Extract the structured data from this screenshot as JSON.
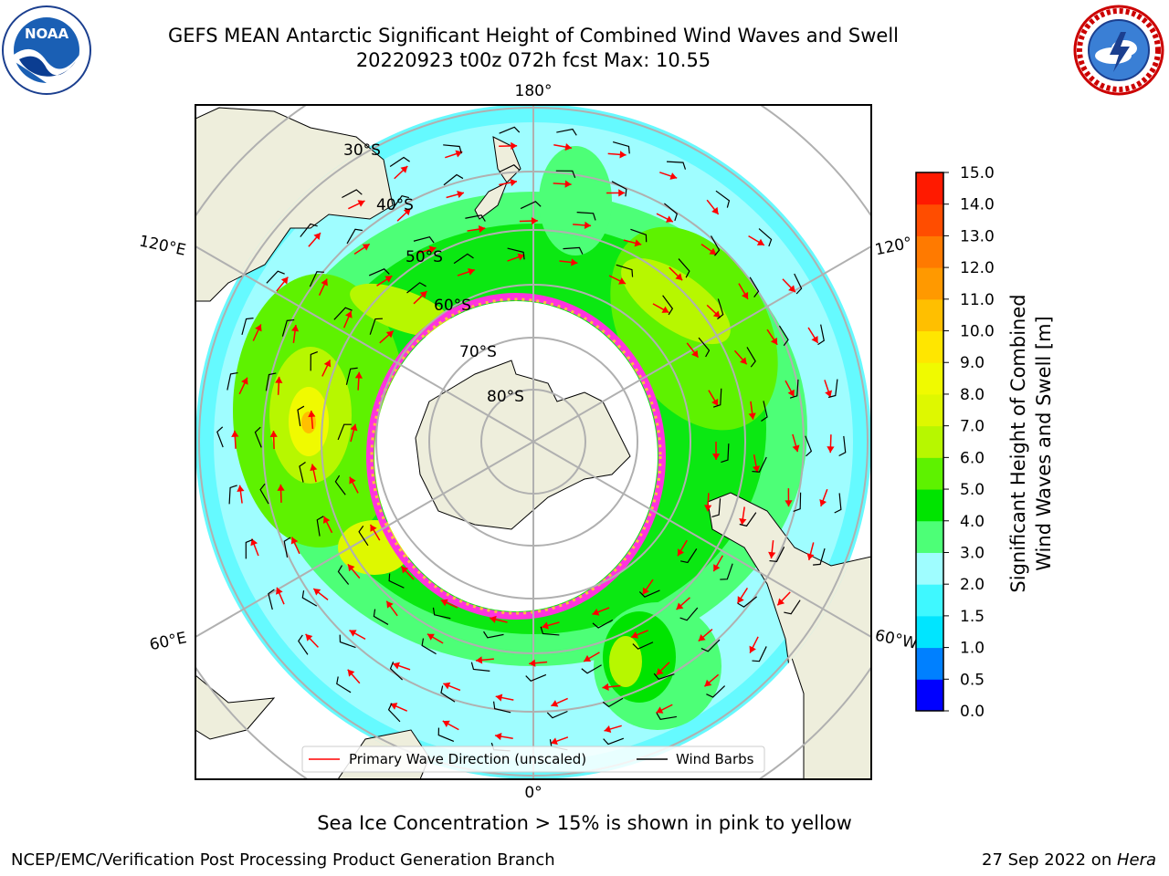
{
  "title": {
    "line1": "GEFS MEAN Antarctic Significant Height of Combined Wind Waves and Swell",
    "line2": "20220923 t00z 072h fcst   Max: 10.55"
  },
  "logos": {
    "left": {
      "icon": "noaa-logo",
      "text": "NOAA"
    },
    "right": {
      "icon": "nws-logo"
    }
  },
  "map": {
    "projection": "south-polar-stereographic",
    "longitude_labels": {
      "top": "180°",
      "upper_left": "120°E",
      "upper_right": "120°",
      "lower_left": "60°E",
      "lower_right": "60°W",
      "bottom": "0°"
    },
    "latitude_labels": [
      "30°S",
      "40°S",
      "50°S",
      "60°S",
      "70°S",
      "80°S"
    ],
    "legend": {
      "wave_direction": "Primary Wave Direction (unscaled)",
      "wind_barbs": "Wind Barbs"
    }
  },
  "colorbar": {
    "label_line1": "Significant Height of Combined",
    "label_line2": "Wind Waves and Swell [m]",
    "ticks": [
      "0.0",
      "0.5",
      "1.0",
      "1.5",
      "2.0",
      "3.0",
      "4.0",
      "5.0",
      "6.0",
      "7.0",
      "8.0",
      "9.0",
      "10.0",
      "11.0",
      "12.0",
      "13.0",
      "14.0",
      "15.0"
    ],
    "colors": [
      "#0000ff",
      "#0080ff",
      "#00e5ff",
      "#3ff8ff",
      "#9ffdff",
      "#4dff77",
      "#00e400",
      "#5ef200",
      "#b7f700",
      "#def800",
      "#f0fa00",
      "#ffe600",
      "#ffbf00",
      "#ff9900",
      "#ff7a00",
      "#ff4d00",
      "#ff1a00"
    ]
  },
  "note": "Sea Ice Concentration > 15% is shown in pink to yellow",
  "footer": {
    "left": "NCEP/EMC/Verification Post Processing Product Generation Branch",
    "right_date": "27 Sep 2022 on ",
    "right_host": "Hera"
  }
}
